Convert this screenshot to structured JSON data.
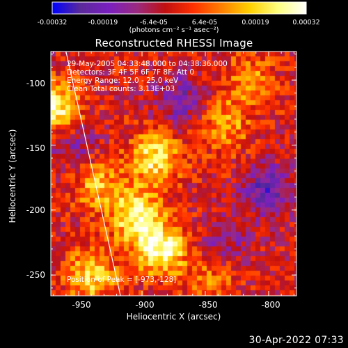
{
  "colorbar": {
    "colors": [
      "#0000ff",
      "#5a2a9a",
      "#7a1fbf",
      "#9a2a80",
      "#c01010",
      "#ff3000",
      "#ff8000",
      "#ffd000",
      "#ffff80",
      "#ffffff"
    ],
    "ticks": [
      "-0.00032",
      "-0.00019",
      "-6.4e-05",
      "6.4e-05",
      "0.00019",
      "0.00032"
    ],
    "units_label": "(photons cm⁻² s⁻¹ asec⁻²)"
  },
  "chart_data": {
    "type": "heatmap",
    "title": "Reconstructed RHESSI Image",
    "xlabel": "Heliocentric X (arcsec)",
    "ylabel": "Heliocentric Y (arcsec)",
    "xlim": [
      -972,
      -778
    ],
    "ylim": [
      -266,
      -78
    ],
    "x_ticks": [
      "-950",
      "-900",
      "-850",
      "-800"
    ],
    "y_ticks": [
      "-100",
      "-150",
      "-200",
      "-250"
    ],
    "clim": [
      -0.00032,
      0.00032
    ],
    "annotations": [
      "29-May-2005 04:33:48.000 to 04:38:36.000",
      "Detectors: 3F 4F 5F 6F 7F 8F, Att 0",
      "Energy Range: 12.0 - 25.0 keV",
      "Clean   Total counts: 3.13E+03"
    ],
    "peak_label": "Position of Peak = [-973,-128]",
    "peak": [
      -973,
      -128
    ],
    "limb_line": [
      [
        -960,
        -78
      ],
      [
        -917,
        -266
      ]
    ],
    "bright_regions": [
      {
        "x": -885,
        "y": -230,
        "value": 0.00031
      },
      {
        "x": -905,
        "y": -205,
        "value": 0.00027
      },
      {
        "x": -890,
        "y": -160,
        "value": 0.00026
      },
      {
        "x": -935,
        "y": -180,
        "value": 0.00018
      },
      {
        "x": -940,
        "y": -250,
        "value": 0.00022
      },
      {
        "x": -968,
        "y": -122,
        "value": 0.00028
      },
      {
        "x": -835,
        "y": -135,
        "value": 0.00017
      },
      {
        "x": -815,
        "y": -100,
        "value": 0.00014
      },
      {
        "x": -845,
        "y": -255,
        "value": 0.00012
      }
    ],
    "dark_regions": [
      {
        "x": -800,
        "y": -185,
        "value": -0.0002
      },
      {
        "x": -870,
        "y": -115,
        "value": -0.00016
      },
      {
        "x": -955,
        "y": -150,
        "value": -0.00012
      },
      {
        "x": -835,
        "y": -225,
        "value": -0.00011
      }
    ]
  },
  "timestamp": "30-Apr-2022 07:33"
}
